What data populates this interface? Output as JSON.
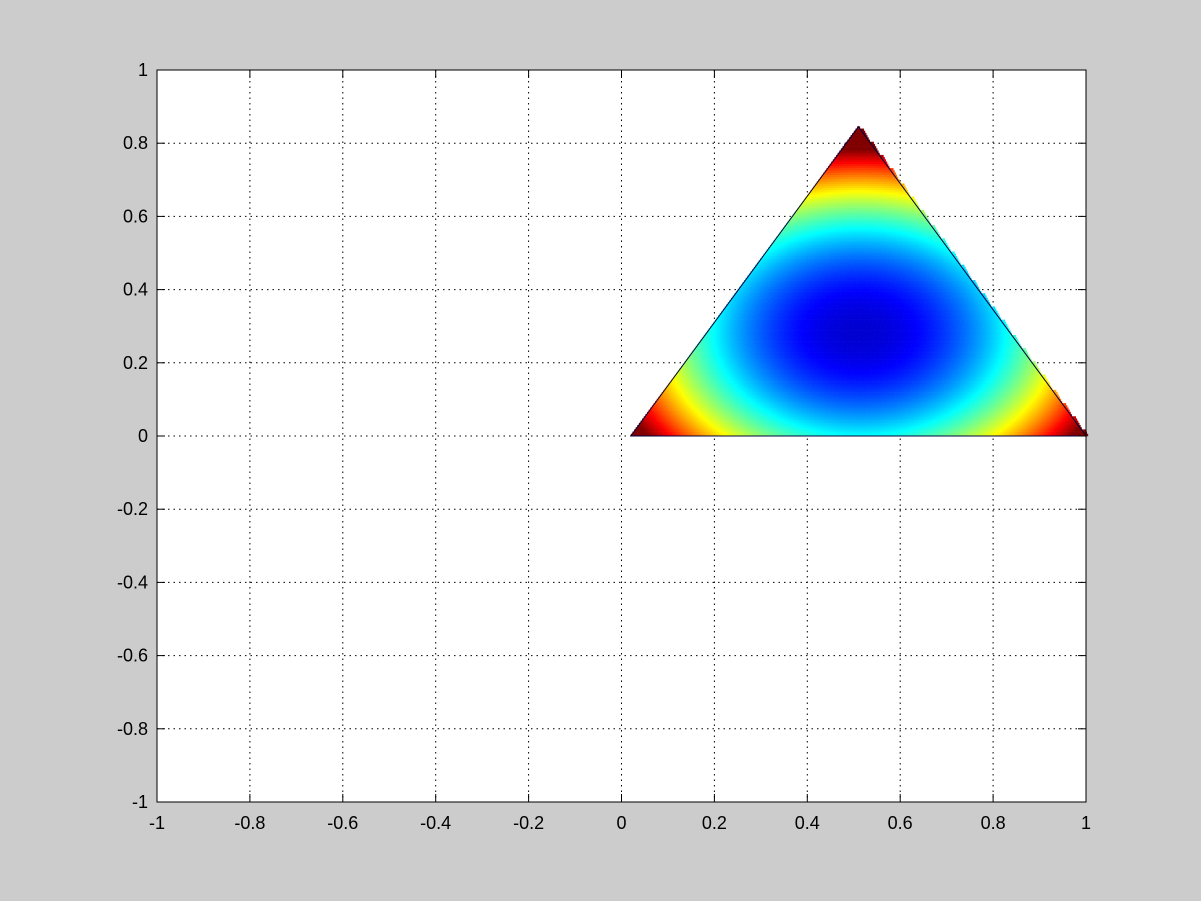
{
  "chart_data": {
    "type": "heatmap",
    "title": "",
    "xlabel": "",
    "ylabel": "",
    "xlim": [
      -1,
      1
    ],
    "ylim": [
      -1,
      1
    ],
    "xticks": [
      -1,
      -0.8,
      -0.6,
      -0.4,
      -0.2,
      0,
      0.2,
      0.4,
      0.6,
      0.8,
      1
    ],
    "xtick_labels": [
      "-1",
      "-0.8",
      "-0.6",
      "-0.4",
      "-0.2",
      "0",
      "0.2",
      "0.4",
      "0.6",
      "0.8",
      "1"
    ],
    "yticks": [
      -1,
      -0.8,
      -0.6,
      -0.4,
      -0.2,
      0,
      0.2,
      0.4,
      0.6,
      0.8,
      1
    ],
    "ytick_labels": [
      "-1",
      "-0.8",
      "-0.6",
      "-0.4",
      "-0.2",
      "0",
      "0.2",
      "0.4",
      "0.6",
      "0.8",
      "1"
    ],
    "grid": true,
    "grid_style": "dotted",
    "colormap": "jet",
    "region": {
      "shape": "triangle",
      "vertices": [
        [
          0.02,
          0
        ],
        [
          0.51,
          0.845
        ],
        [
          1.0,
          0
        ]
      ]
    },
    "colors": {
      "figure_background": "#cccccc",
      "axes_background": "#ffffff",
      "axis_color": "#000000"
    }
  }
}
